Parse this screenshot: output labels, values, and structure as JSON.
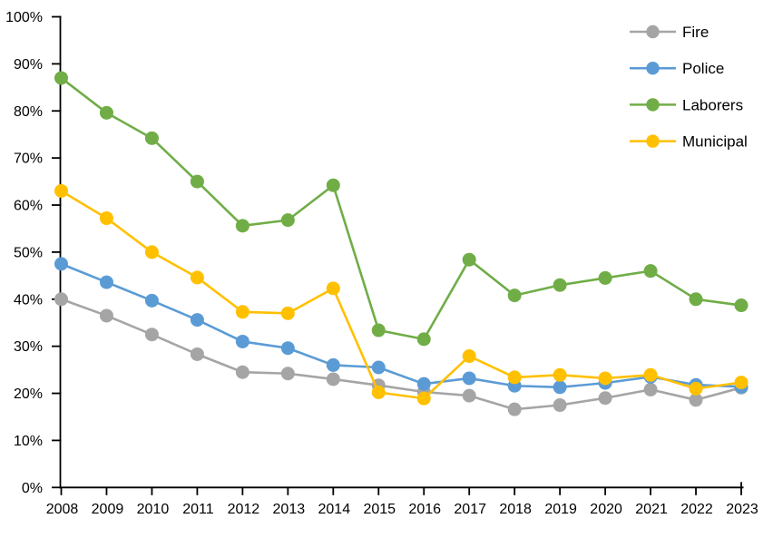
{
  "chart_data": {
    "type": "line",
    "title": "",
    "x": [
      "2008",
      "2009",
      "2010",
      "2011",
      "2012",
      "2013",
      "2014",
      "2015",
      "2016",
      "2017",
      "2018",
      "2019",
      "2020",
      "2021",
      "2022",
      "2023"
    ],
    "y_axis": {
      "min": 0,
      "max": 100,
      "step": 10,
      "format": "percent",
      "tick_labels": [
        "0%",
        "10%",
        "20%",
        "30%",
        "40%",
        "50%",
        "60%",
        "70%",
        "80%",
        "90%",
        "100%"
      ]
    },
    "grid": false,
    "legend_position": "top-right",
    "background_color": "#FFFFFF",
    "axis_color": "#000000",
    "series": [
      {
        "name": "Fire",
        "color": "#A5A5A5",
        "values": [
          40.0,
          36.5,
          32.5,
          28.3,
          24.5,
          24.2,
          23.0,
          21.7,
          20.3,
          19.5,
          16.6,
          17.5,
          19.0,
          20.8,
          18.6,
          21.2
        ]
      },
      {
        "name": "Police",
        "color": "#5B9BD5",
        "values": [
          47.5,
          43.6,
          39.7,
          35.6,
          31.0,
          29.6,
          26.0,
          25.5,
          22.0,
          23.2,
          21.6,
          21.3,
          22.2,
          23.5,
          21.8,
          21.4
        ]
      },
      {
        "name": "Laborers",
        "color": "#70AD47",
        "values": [
          87.0,
          79.6,
          74.2,
          65.0,
          55.6,
          56.8,
          64.2,
          33.4,
          31.5,
          48.4,
          40.8,
          43.0,
          44.5,
          46.0,
          40.0,
          38.7
        ]
      },
      {
        "name": "Municipal",
        "color": "#FFC000",
        "values": [
          63.0,
          57.2,
          50.0,
          44.6,
          37.3,
          37.0,
          42.3,
          20.2,
          18.9,
          27.9,
          23.4,
          23.9,
          23.2,
          23.9,
          21.0,
          22.3
        ]
      }
    ]
  }
}
